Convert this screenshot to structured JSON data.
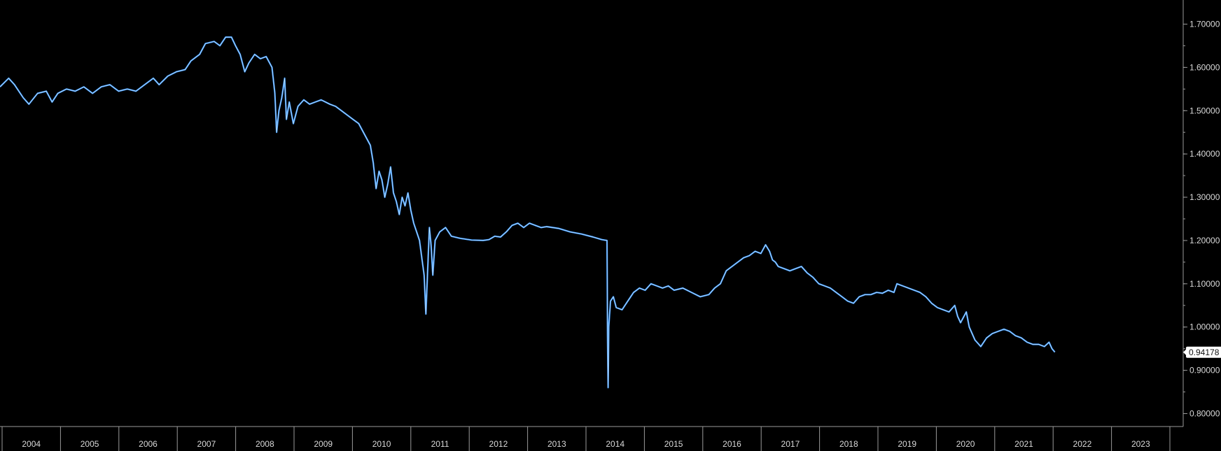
{
  "chart_data": {
    "type": "line",
    "title": "",
    "xlabel": "",
    "ylabel": "",
    "legend": "none",
    "grid": false,
    "colors": {
      "background": "#000000",
      "line": "#3d9bff",
      "highlight": "#ffffff",
      "axis": "#9a9a9a",
      "text": "#d9d9d9",
      "last_label_bg": "#ffffff"
    },
    "xlim": [
      2003.55,
      2023.78
    ],
    "ylim": [
      0.78,
      1.73
    ],
    "x_tick_labels": [
      "2004",
      "2005",
      "2006",
      "2007",
      "2008",
      "2009",
      "2010",
      "2011",
      "2012",
      "2013",
      "2014",
      "2015",
      "2016",
      "2017",
      "2018",
      "2019",
      "2020",
      "2021",
      "2022",
      "2023"
    ],
    "y_tick_labels": [
      "1.70000",
      "1.60000",
      "1.50000",
      "1.40000",
      "1.30000",
      "1.20000",
      "1.10000",
      "1.00000",
      "0.90000",
      "0.80000"
    ],
    "y_tick_values": [
      1.7,
      1.6,
      1.5,
      1.4,
      1.3,
      1.2,
      1.1,
      1.0,
      0.9,
      0.8
    ],
    "last_value_label": "0.94178",
    "last_value": 0.94178,
    "series": [
      {
        "values": [
          [
            2003.55,
            1.555
          ],
          [
            2003.7,
            1.575
          ],
          [
            2003.8,
            1.56
          ],
          [
            2003.95,
            1.53
          ],
          [
            2004.05,
            1.515
          ],
          [
            2004.2,
            1.54
          ],
          [
            2004.35,
            1.545
          ],
          [
            2004.45,
            1.52
          ],
          [
            2004.55,
            1.54
          ],
          [
            2004.7,
            1.55
          ],
          [
            2004.85,
            1.545
          ],
          [
            2005.0,
            1.555
          ],
          [
            2005.15,
            1.54
          ],
          [
            2005.3,
            1.555
          ],
          [
            2005.45,
            1.56
          ],
          [
            2005.6,
            1.545
          ],
          [
            2005.75,
            1.55
          ],
          [
            2005.9,
            1.545
          ],
          [
            2006.05,
            1.56
          ],
          [
            2006.2,
            1.575
          ],
          [
            2006.3,
            1.56
          ],
          [
            2006.45,
            1.58
          ],
          [
            2006.6,
            1.59
          ],
          [
            2006.75,
            1.595
          ],
          [
            2006.85,
            1.615
          ],
          [
            2007.0,
            1.63
          ],
          [
            2007.1,
            1.655
          ],
          [
            2007.25,
            1.66
          ],
          [
            2007.35,
            1.65
          ],
          [
            2007.45,
            1.67
          ],
          [
            2007.55,
            1.67
          ],
          [
            2007.62,
            1.65
          ],
          [
            2007.7,
            1.63
          ],
          [
            2007.78,
            1.59
          ],
          [
            2007.85,
            1.61
          ],
          [
            2007.95,
            1.63
          ],
          [
            2008.05,
            1.62
          ],
          [
            2008.15,
            1.625
          ],
          [
            2008.25,
            1.6
          ],
          [
            2008.3,
            1.54
          ],
          [
            2008.33,
            1.45
          ],
          [
            2008.37,
            1.5
          ],
          [
            2008.42,
            1.53
          ],
          [
            2008.47,
            1.575
          ],
          [
            2008.5,
            1.48
          ],
          [
            2008.55,
            1.52
          ],
          [
            2008.62,
            1.47
          ],
          [
            2008.7,
            1.51
          ],
          [
            2008.8,
            1.525
          ],
          [
            2008.9,
            1.515
          ],
          [
            2009.0,
            1.52
          ],
          [
            2009.1,
            1.525
          ],
          [
            2009.25,
            1.515
          ],
          [
            2009.35,
            1.51
          ],
          [
            2009.45,
            1.5
          ],
          [
            2009.55,
            1.49
          ],
          [
            2009.65,
            1.48
          ],
          [
            2009.75,
            1.47
          ],
          [
            2009.85,
            1.445
          ],
          [
            2009.95,
            1.42
          ],
          [
            2010.0,
            1.38
          ],
          [
            2010.05,
            1.32
          ],
          [
            2010.1,
            1.36
          ],
          [
            2010.15,
            1.34
          ],
          [
            2010.2,
            1.3
          ],
          [
            2010.25,
            1.33
          ],
          [
            2010.3,
            1.37
          ],
          [
            2010.35,
            1.31
          ],
          [
            2010.4,
            1.29
          ],
          [
            2010.45,
            1.26
          ],
          [
            2010.5,
            1.3
          ],
          [
            2010.55,
            1.28
          ],
          [
            2010.6,
            1.31
          ],
          [
            2010.65,
            1.27
          ],
          [
            2010.7,
            1.24
          ],
          [
            2010.75,
            1.22
          ],
          [
            2010.8,
            1.2
          ],
          [
            2010.85,
            1.15
          ],
          [
            2010.88,
            1.12
          ],
          [
            2010.91,
            1.03
          ],
          [
            2010.94,
            1.13
          ],
          [
            2010.97,
            1.23
          ],
          [
            2011.0,
            1.19
          ],
          [
            2011.03,
            1.12
          ],
          [
            2011.07,
            1.2
          ],
          [
            2011.15,
            1.22
          ],
          [
            2011.25,
            1.23
          ],
          [
            2011.35,
            1.21
          ],
          [
            2011.5,
            1.205
          ],
          [
            2011.7,
            1.201
          ],
          [
            2011.9,
            1.2
          ],
          [
            2012.0,
            1.202
          ],
          [
            2012.1,
            1.21
          ],
          [
            2012.2,
            1.208
          ],
          [
            2012.3,
            1.22
          ],
          [
            2012.4,
            1.235
          ],
          [
            2012.5,
            1.24
          ],
          [
            2012.6,
            1.23
          ],
          [
            2012.7,
            1.24
          ],
          [
            2012.8,
            1.235
          ],
          [
            2012.9,
            1.23
          ],
          [
            2013.0,
            1.232
          ],
          [
            2013.2,
            1.228
          ],
          [
            2013.4,
            1.22
          ],
          [
            2013.6,
            1.215
          ],
          [
            2013.8,
            1.208
          ],
          [
            2013.95,
            1.202
          ],
          [
            2014.04,
            1.2
          ],
          [
            2014.05,
            0.98
          ],
          [
            2014.06,
            0.86
          ],
          [
            2014.07,
            1.0
          ],
          [
            2014.1,
            1.06
          ],
          [
            2014.15,
            1.07
          ],
          [
            2014.2,
            1.045
          ],
          [
            2014.3,
            1.04
          ],
          [
            2014.4,
            1.06
          ],
          [
            2014.5,
            1.08
          ],
          [
            2014.6,
            1.09
          ],
          [
            2014.7,
            1.085
          ],
          [
            2014.8,
            1.1
          ],
          [
            2014.9,
            1.095
          ],
          [
            2015.0,
            1.09
          ],
          [
            2015.1,
            1.095
          ],
          [
            2015.2,
            1.085
          ],
          [
            2015.35,
            1.09
          ],
          [
            2015.5,
            1.08
          ],
          [
            2015.65,
            1.07
          ],
          [
            2015.8,
            1.075
          ],
          [
            2015.9,
            1.09
          ],
          [
            2016.0,
            1.1
          ],
          [
            2016.1,
            1.13
          ],
          [
            2016.2,
            1.14
          ],
          [
            2016.3,
            1.15
          ],
          [
            2016.4,
            1.16
          ],
          [
            2016.5,
            1.165
          ],
          [
            2016.6,
            1.175
          ],
          [
            2016.7,
            1.17
          ],
          [
            2016.78,
            1.19
          ],
          [
            2016.85,
            1.175
          ],
          [
            2016.9,
            1.155
          ],
          [
            2016.95,
            1.15
          ],
          [
            2017.0,
            1.14
          ],
          [
            2017.1,
            1.135
          ],
          [
            2017.2,
            1.13
          ],
          [
            2017.3,
            1.135
          ],
          [
            2017.4,
            1.14
          ],
          [
            2017.5,
            1.125
          ],
          [
            2017.6,
            1.115
          ],
          [
            2017.7,
            1.1
          ],
          [
            2017.8,
            1.095
          ],
          [
            2017.9,
            1.09
          ],
          [
            2018.0,
            1.08
          ],
          [
            2018.1,
            1.07
          ],
          [
            2018.2,
            1.06
          ],
          [
            2018.3,
            1.055
          ],
          [
            2018.4,
            1.07
          ],
          [
            2018.5,
            1.075
          ],
          [
            2018.6,
            1.075
          ],
          [
            2018.7,
            1.08
          ],
          [
            2018.8,
            1.078
          ],
          [
            2018.9,
            1.085
          ],
          [
            2019.0,
            1.08
          ],
          [
            2019.05,
            1.1
          ],
          [
            2019.15,
            1.095
          ],
          [
            2019.25,
            1.09
          ],
          [
            2019.35,
            1.085
          ],
          [
            2019.45,
            1.08
          ],
          [
            2019.55,
            1.07
          ],
          [
            2019.65,
            1.055
          ],
          [
            2019.75,
            1.045
          ],
          [
            2019.85,
            1.04
          ],
          [
            2019.95,
            1.035
          ],
          [
            2020.05,
            1.05
          ],
          [
            2020.1,
            1.025
          ],
          [
            2020.15,
            1.01
          ],
          [
            2020.25,
            1.035
          ],
          [
            2020.3,
            1.0
          ],
          [
            2020.4,
            0.97
          ],
          [
            2020.5,
            0.955
          ],
          [
            2020.6,
            0.975
          ],
          [
            2020.7,
            0.985
          ],
          [
            2020.8,
            0.99
          ],
          [
            2020.9,
            0.995
          ],
          [
            2021.0,
            0.99
          ],
          [
            2021.1,
            0.98
          ],
          [
            2021.2,
            0.975
          ],
          [
            2021.3,
            0.965
          ],
          [
            2021.4,
            0.96
          ],
          [
            2021.5,
            0.96
          ],
          [
            2021.6,
            0.955
          ],
          [
            2021.68,
            0.965
          ],
          [
            2021.73,
            0.95
          ],
          [
            2021.78,
            0.942
          ]
        ]
      }
    ]
  }
}
